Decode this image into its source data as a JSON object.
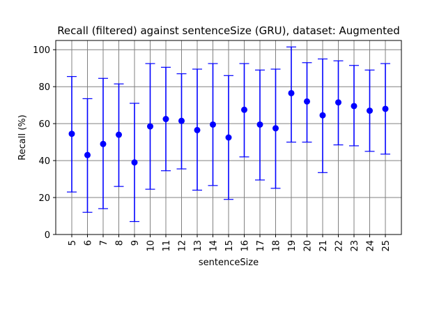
{
  "chart_data": {
    "type": "scatter",
    "title": "Recall (filtered) against sentenceSize (GRU), dataset: Augmented",
    "xlabel": "sentenceSize",
    "ylabel": "Recall (%)",
    "ylim": [
      0,
      105
    ],
    "yticks": [
      0,
      20,
      40,
      60,
      80,
      100
    ],
    "grid": true,
    "marker_color": "#0000ff",
    "grid_color": "#808080",
    "categories": [
      "5",
      "6",
      "7",
      "8",
      "9",
      "10",
      "11",
      "12",
      "13",
      "14",
      "15",
      "16",
      "17",
      "18",
      "19",
      "20",
      "21",
      "22",
      "23",
      "24",
      "25"
    ],
    "series": [
      {
        "values": [
          54.5,
          43,
          49,
          54,
          39,
          58.5,
          62.5,
          61.5,
          56.5,
          59.5,
          52.5,
          67.5,
          59.5,
          57.5,
          76.5,
          72,
          64.5,
          71.5,
          69.5,
          67,
          68
        ],
        "err_low": [
          23,
          12,
          14,
          26,
          7,
          24.5,
          34.5,
          35.5,
          24,
          26.5,
          19,
          42,
          29.5,
          25,
          50,
          50,
          33.5,
          48.5,
          48,
          45,
          43.5
        ],
        "err_high": [
          85.5,
          73.5,
          84.5,
          81.5,
          71,
          92.5,
          90.5,
          87,
          89.5,
          92.5,
          86,
          92.5,
          89,
          89.5,
          101.5,
          93,
          95,
          94,
          91.5,
          89,
          92.5
        ]
      }
    ]
  }
}
